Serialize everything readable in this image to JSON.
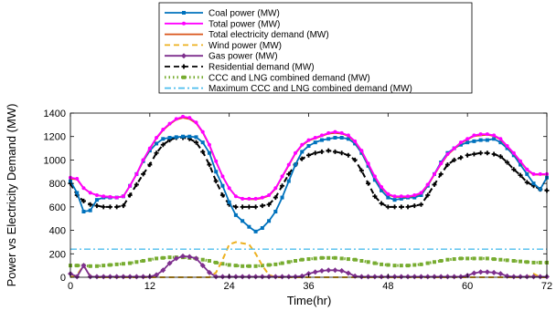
{
  "chart_data": {
    "type": "line",
    "xlabel": "Time(hr)",
    "ylabel": "Power vs Electricity Demand (MW)",
    "xlim": [
      0,
      72
    ],
    "ylim": [
      0,
      1400
    ],
    "xticks": [
      0,
      12,
      24,
      36,
      48,
      60,
      72
    ],
    "yticks": [
      0,
      200,
      400,
      600,
      800,
      1000,
      1200,
      1400
    ],
    "grid": false,
    "legend_position": "top-center",
    "x": [
      0,
      1,
      2,
      3,
      4,
      5,
      6,
      7,
      8,
      9,
      10,
      11,
      12,
      13,
      14,
      15,
      16,
      17,
      18,
      19,
      20,
      21,
      22,
      23,
      24,
      25,
      26,
      27,
      28,
      29,
      30,
      31,
      32,
      33,
      34,
      35,
      36,
      37,
      38,
      39,
      40,
      41,
      42,
      43,
      44,
      45,
      46,
      47,
      48,
      49,
      50,
      51,
      52,
      53,
      54,
      55,
      56,
      57,
      58,
      59,
      60,
      61,
      62,
      63,
      64,
      65,
      66,
      67,
      68,
      69,
      70,
      71,
      72
    ],
    "series": [
      {
        "name": "Coal power (MW)",
        "color": "#0072BD",
        "style": "solid",
        "marker": "square",
        "values": [
          820,
          720,
          560,
          570,
          660,
          680,
          680,
          680,
          690,
          780,
          880,
          990,
          1080,
          1140,
          1180,
          1190,
          1195,
          1200,
          1200,
          1195,
          1150,
          1060,
          900,
          780,
          640,
          530,
          480,
          430,
          390,
          420,
          480,
          560,
          680,
          820,
          960,
          1070,
          1120,
          1150,
          1170,
          1180,
          1190,
          1190,
          1180,
          1140,
          1060,
          950,
          830,
          740,
          680,
          660,
          670,
          680,
          680,
          700,
          780,
          880,
          980,
          1060,
          1100,
          1130,
          1150,
          1160,
          1170,
          1170,
          1180,
          1150,
          1100,
          1040,
          960,
          880,
          800,
          750,
          850
        ]
      },
      {
        "name": "Total power (MW)",
        "color": "#FF00FF",
        "style": "solid",
        "marker": "circle",
        "values": [
          850,
          840,
          760,
          720,
          700,
          690,
          685,
          680,
          690,
          780,
          880,
          1000,
          1100,
          1190,
          1260,
          1310,
          1350,
          1370,
          1360,
          1320,
          1240,
          1130,
          990,
          860,
          760,
          690,
          670,
          670,
          670,
          680,
          700,
          760,
          860,
          960,
          1060,
          1130,
          1170,
          1190,
          1210,
          1230,
          1240,
          1230,
          1210,
          1160,
          1080,
          970,
          860,
          770,
          710,
          690,
          690,
          690,
          700,
          720,
          790,
          880,
          970,
          1050,
          1100,
          1150,
          1180,
          1210,
          1220,
          1220,
          1210,
          1180,
          1120,
          1060,
          990,
          920,
          880,
          880,
          880
        ]
      },
      {
        "name": "Total electricity demand (MW)",
        "color": "#D95319",
        "style": "solid",
        "marker": "none",
        "values": [
          840,
          835,
          760,
          720,
          700,
          690,
          685,
          680,
          690,
          780,
          880,
          995,
          1095,
          1185,
          1255,
          1305,
          1345,
          1360,
          1350,
          1315,
          1235,
          1125,
          985,
          860,
          760,
          690,
          670,
          665,
          665,
          675,
          695,
          755,
          855,
          955,
          1055,
          1125,
          1165,
          1185,
          1205,
          1225,
          1230,
          1225,
          1205,
          1155,
          1075,
          965,
          855,
          765,
          705,
          685,
          685,
          685,
          695,
          715,
          785,
          875,
          965,
          1045,
          1095,
          1145,
          1175,
          1205,
          1210,
          1215,
          1205,
          1175,
          1115,
          1055,
          985,
          915,
          875,
          875,
          875
        ]
      },
      {
        "name": "Wind power (MW)",
        "color": "#EDB120",
        "style": "dashed",
        "marker": "none",
        "values": [
          0,
          20,
          100,
          10,
          0,
          0,
          0,
          0,
          0,
          0,
          0,
          0,
          0,
          0,
          0,
          0,
          0,
          0,
          0,
          0,
          0,
          0,
          40,
          150,
          280,
          300,
          290,
          280,
          200,
          100,
          20,
          0,
          0,
          0,
          0,
          0,
          0,
          0,
          0,
          0,
          0,
          0,
          0,
          0,
          0,
          0,
          0,
          0,
          0,
          0,
          0,
          0,
          0,
          0,
          0,
          0,
          0,
          0,
          0,
          0,
          0,
          0,
          0,
          0,
          0,
          0,
          0,
          0,
          0,
          0,
          30,
          0,
          0
        ]
      },
      {
        "name": "Gas power (MW)",
        "color": "#7E2F8E",
        "style": "solid",
        "marker": "diamond",
        "values": [
          30,
          5,
          100,
          5,
          5,
          5,
          5,
          5,
          5,
          5,
          5,
          5,
          5,
          20,
          60,
          120,
          160,
          180,
          175,
          160,
          100,
          40,
          5,
          5,
          5,
          5,
          5,
          5,
          5,
          5,
          5,
          5,
          5,
          5,
          5,
          10,
          30,
          45,
          55,
          60,
          60,
          55,
          35,
          10,
          5,
          5,
          5,
          5,
          5,
          5,
          5,
          5,
          5,
          5,
          5,
          5,
          5,
          5,
          5,
          5,
          15,
          35,
          45,
          45,
          40,
          30,
          10,
          5,
          5,
          5,
          5,
          5,
          5
        ]
      },
      {
        "name": "Residential demand (MW)",
        "color": "#000000",
        "style": "dashed",
        "marker": "plus",
        "values": [
          800,
          700,
          650,
          620,
          610,
          600,
          600,
          600,
          610,
          700,
          790,
          880,
          960,
          1060,
          1130,
          1170,
          1190,
          1190,
          1180,
          1150,
          1070,
          960,
          820,
          700,
          620,
          600,
          600,
          600,
          600,
          610,
          620,
          680,
          780,
          880,
          960,
          1010,
          1040,
          1060,
          1070,
          1080,
          1070,
          1060,
          1040,
          1000,
          910,
          800,
          690,
          630,
          600,
          600,
          600,
          600,
          610,
          620,
          700,
          790,
          880,
          960,
          1000,
          1020,
          1040,
          1050,
          1060,
          1060,
          1050,
          1030,
          980,
          920,
          870,
          810,
          780,
          750,
          740
        ]
      },
      {
        "name": "CCC and LNG combined demand (MW)",
        "color": "#77AC30",
        "style": "dotted",
        "marker": "square",
        "values": [
          100,
          100,
          100,
          95,
          95,
          100,
          105,
          110,
          115,
          120,
          130,
          140,
          150,
          160,
          165,
          170,
          170,
          170,
          165,
          160,
          150,
          140,
          125,
          115,
          105,
          100,
          95,
          95,
          95,
          100,
          105,
          110,
          120,
          130,
          140,
          150,
          155,
          160,
          165,
          165,
          165,
          160,
          155,
          150,
          140,
          130,
          120,
          110,
          105,
          100,
          100,
          100,
          105,
          110,
          120,
          130,
          140,
          150,
          155,
          160,
          160,
          160,
          160,
          160,
          155,
          150,
          145,
          140,
          135,
          130,
          125,
          125,
          125
        ]
      },
      {
        "name": "Maximum CCC and LNG combined demand (MW)",
        "color": "#4DBEEE",
        "style": "dashdot",
        "marker": "none",
        "values": [
          240,
          240,
          240,
          240,
          240,
          240,
          240,
          240,
          240,
          240,
          240,
          240,
          240,
          240,
          240,
          240,
          240,
          240,
          240,
          240,
          240,
          240,
          240,
          240,
          240,
          240,
          240,
          240,
          240,
          240,
          240,
          240,
          240,
          240,
          240,
          240,
          240,
          240,
          240,
          240,
          240,
          240,
          240,
          240,
          240,
          240,
          240,
          240,
          240,
          240,
          240,
          240,
          240,
          240,
          240,
          240,
          240,
          240,
          240,
          240,
          240,
          240,
          240,
          240,
          240,
          240,
          240,
          240,
          240,
          240,
          240,
          240,
          240
        ]
      }
    ]
  }
}
